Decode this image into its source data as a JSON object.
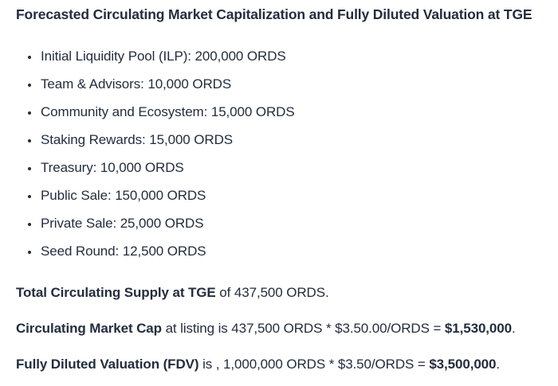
{
  "title": "Forecasted Circulating Market Capitalization and Fully Diluted Valuation at TGE",
  "allocations": [
    "Initial Liquidity Pool (ILP): 200,000 ORDS",
    "Team & Advisors: 10,000 ORDS",
    "Community and Ecosystem: 15,000 ORDS",
    "Staking Rewards: 15,000 ORDS",
    "Treasury: 10,000 ORDS",
    "Public Sale: 150,000 ORDS",
    "Private Sale: 25,000 ORDS",
    "Seed Round: 12,500 ORDS"
  ],
  "summary": [
    {
      "lead": "Total Circulating Supply at TGE",
      "text": " of 437,500 ORDS.",
      "value": "",
      "tail": ""
    },
    {
      "lead": "Circulating Market Cap",
      "text": " at listing is 437,500 ORDS * $3.50.00/ORDS = ",
      "value": "$1,530,000",
      "tail": "."
    },
    {
      "lead": "Fully Diluted Valuation (FDV)",
      "text": " is , 1,000,000 ORDS * $3.50/ORDS = ",
      "value": "$3,500,000",
      "tail": "."
    }
  ],
  "colors": {
    "text": "#232d3d",
    "background": "#ffffff"
  }
}
